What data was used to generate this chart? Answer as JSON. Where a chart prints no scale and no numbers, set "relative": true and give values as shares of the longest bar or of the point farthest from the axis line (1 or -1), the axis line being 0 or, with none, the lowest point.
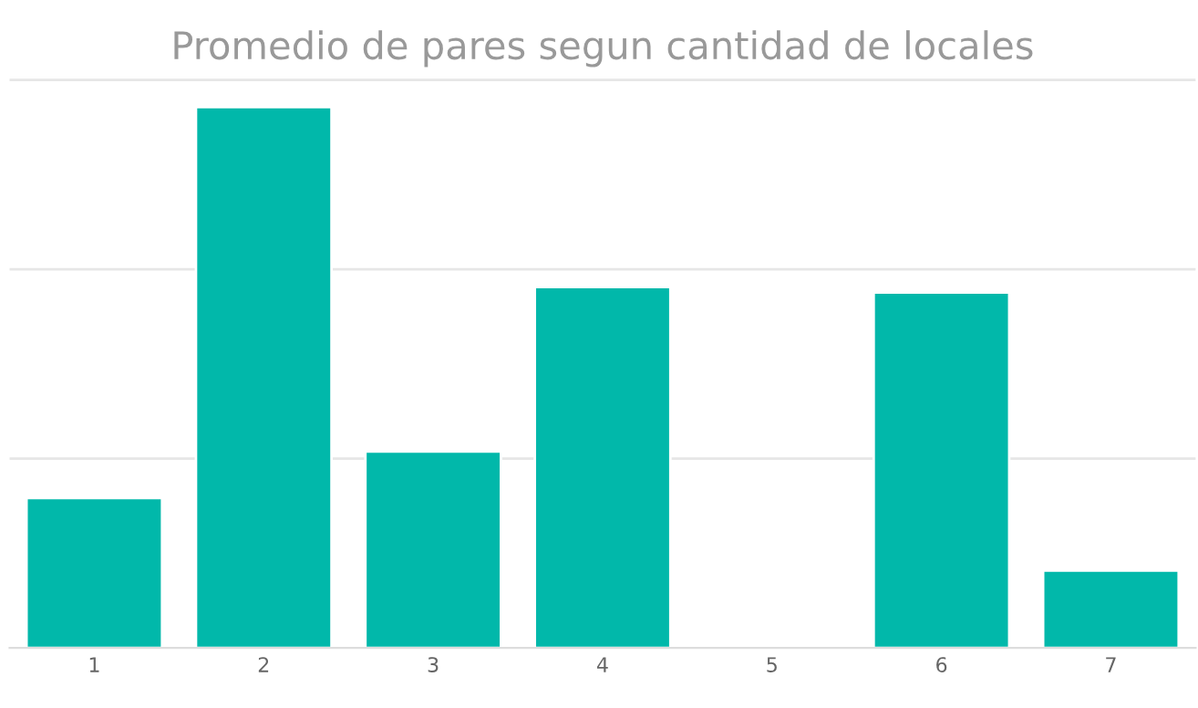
{
  "chart_data": {
    "type": "bar",
    "title": "Promedio de pares segun cantidad de locales",
    "categories": [
      "1",
      "2",
      "3",
      "4",
      "5",
      "6",
      "7"
    ],
    "values": [
      0.277,
      1,
      0.363,
      0.667,
      null,
      0.657,
      0.143
    ],
    "color": "#01b8aa",
    "relative": true,
    "ref_lines": [
      {
        "axis": "y",
        "value": 0.35,
        "color": "#e6e6e6"
      },
      {
        "axis": "y",
        "value": 0.7,
        "color": "#e6e6e6"
      },
      {
        "axis": "y",
        "value": 1.05,
        "color": "#e6e6e6"
      }
    ]
  }
}
